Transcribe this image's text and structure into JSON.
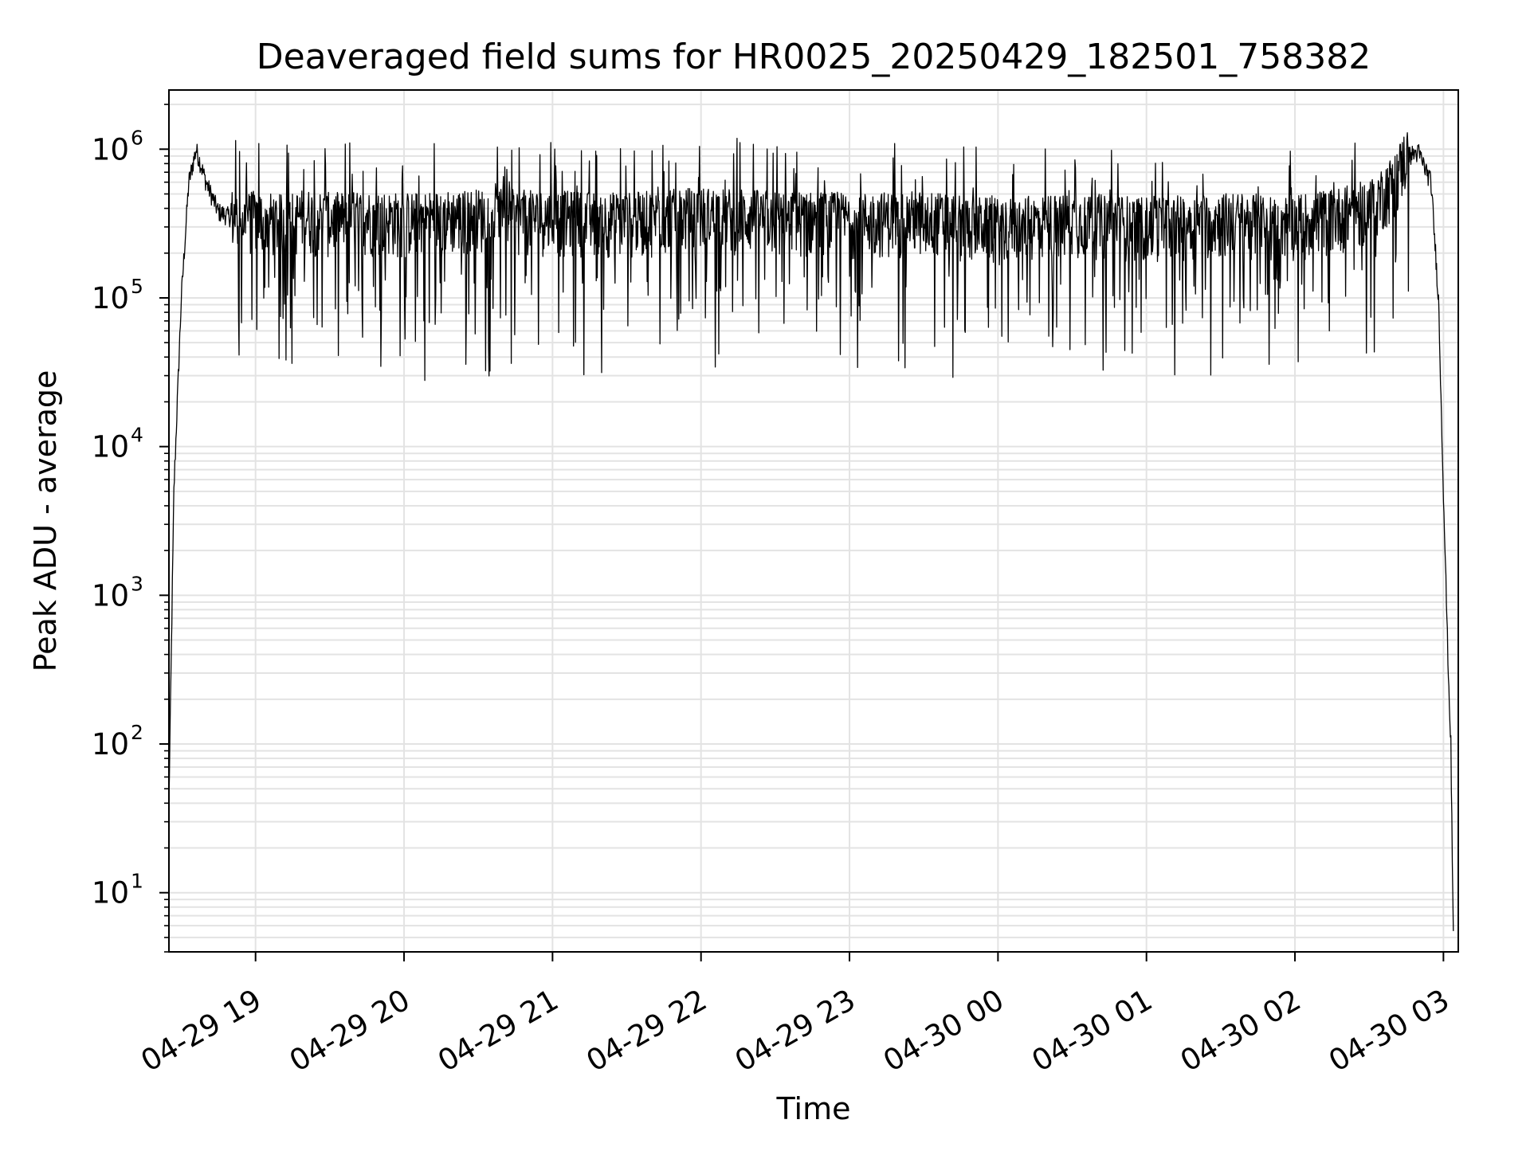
{
  "chart_data": {
    "type": "line",
    "title": "Deaveraged field sums for HR0025_20250429_182501_758382",
    "xlabel": "Time",
    "ylabel": "Peak ADU - average",
    "y_scale": "log",
    "xlim": [
      "2025-04-29 18:25",
      "2025-04-30 03:06"
    ],
    "ylim": [
      4,
      2500000
    ],
    "grid": "major and minor, light gray",
    "line_color": "#000000",
    "x_ticks": [
      "04-29 19",
      "04-29 20",
      "04-29 21",
      "04-29 22",
      "04-29 23",
      "04-30 00",
      "04-30 01",
      "04-30 02",
      "04-30 03"
    ],
    "x_tick_times": [
      "2025-04-29 19:00",
      "2025-04-29 20:00",
      "2025-04-29 21:00",
      "2025-04-29 22:00",
      "2025-04-29 23:00",
      "2025-04-30 00:00",
      "2025-04-30 01:00",
      "2025-04-30 02:00",
      "2025-04-30 03:00"
    ],
    "y_ticks": [
      {
        "base": "10",
        "exp": "1",
        "value": 10
      },
      {
        "base": "10",
        "exp": "2",
        "value": 100
      },
      {
        "base": "10",
        "exp": "3",
        "value": 1000
      },
      {
        "base": "10",
        "exp": "4",
        "value": 10000
      },
      {
        "base": "10",
        "exp": "5",
        "value": 100000
      },
      {
        "base": "10",
        "exp": "6",
        "value": 1000000
      }
    ],
    "series": [
      {
        "x": [
          "2025-04-29 18:25",
          "2025-04-29 18:27",
          "2025-04-29 18:30",
          "2025-04-29 18:33",
          "2025-04-29 18:36",
          "2025-04-29 18:40",
          "2025-04-29 18:45",
          "2025-04-29 18:50",
          "2025-04-29 18:55",
          "2025-04-29 19:00",
          "2025-04-29 19:10",
          "2025-04-29 19:20",
          "2025-04-29 19:30",
          "2025-04-29 19:45",
          "2025-04-29 20:00",
          "2025-04-29 20:30",
          "2025-04-29 21:00",
          "2025-04-29 21:30",
          "2025-04-29 22:00",
          "2025-04-29 22:30",
          "2025-04-29 23:00",
          "2025-04-29 23:30",
          "2025-04-30 00:00",
          "2025-04-30 00:30",
          "2025-04-30 01:00",
          "2025-04-30 01:30",
          "2025-04-30 02:00",
          "2025-04-30 02:15",
          "2025-04-30 02:30",
          "2025-04-30 02:40",
          "2025-04-30 02:45",
          "2025-04-30 02:50",
          "2025-04-30 02:55",
          "2025-04-30 02:58",
          "2025-04-30 03:00",
          "2025-04-30 03:02",
          "2025-04-30 03:03",
          "2025-04-30 03:04"
        ],
        "y": [
          40,
          5000,
          100000,
          600000,
          1000000,
          600000,
          380000,
          350000,
          330000,
          340000,
          320000,
          350000,
          330000,
          340000,
          330000,
          350000,
          340000,
          330000,
          360000,
          340000,
          330000,
          340000,
          300000,
          330000,
          310000,
          330000,
          320000,
          350000,
          400000,
          600000,
          900000,
          950000,
          600000,
          100000,
          5000,
          300,
          100,
          5
        ]
      }
    ]
  }
}
